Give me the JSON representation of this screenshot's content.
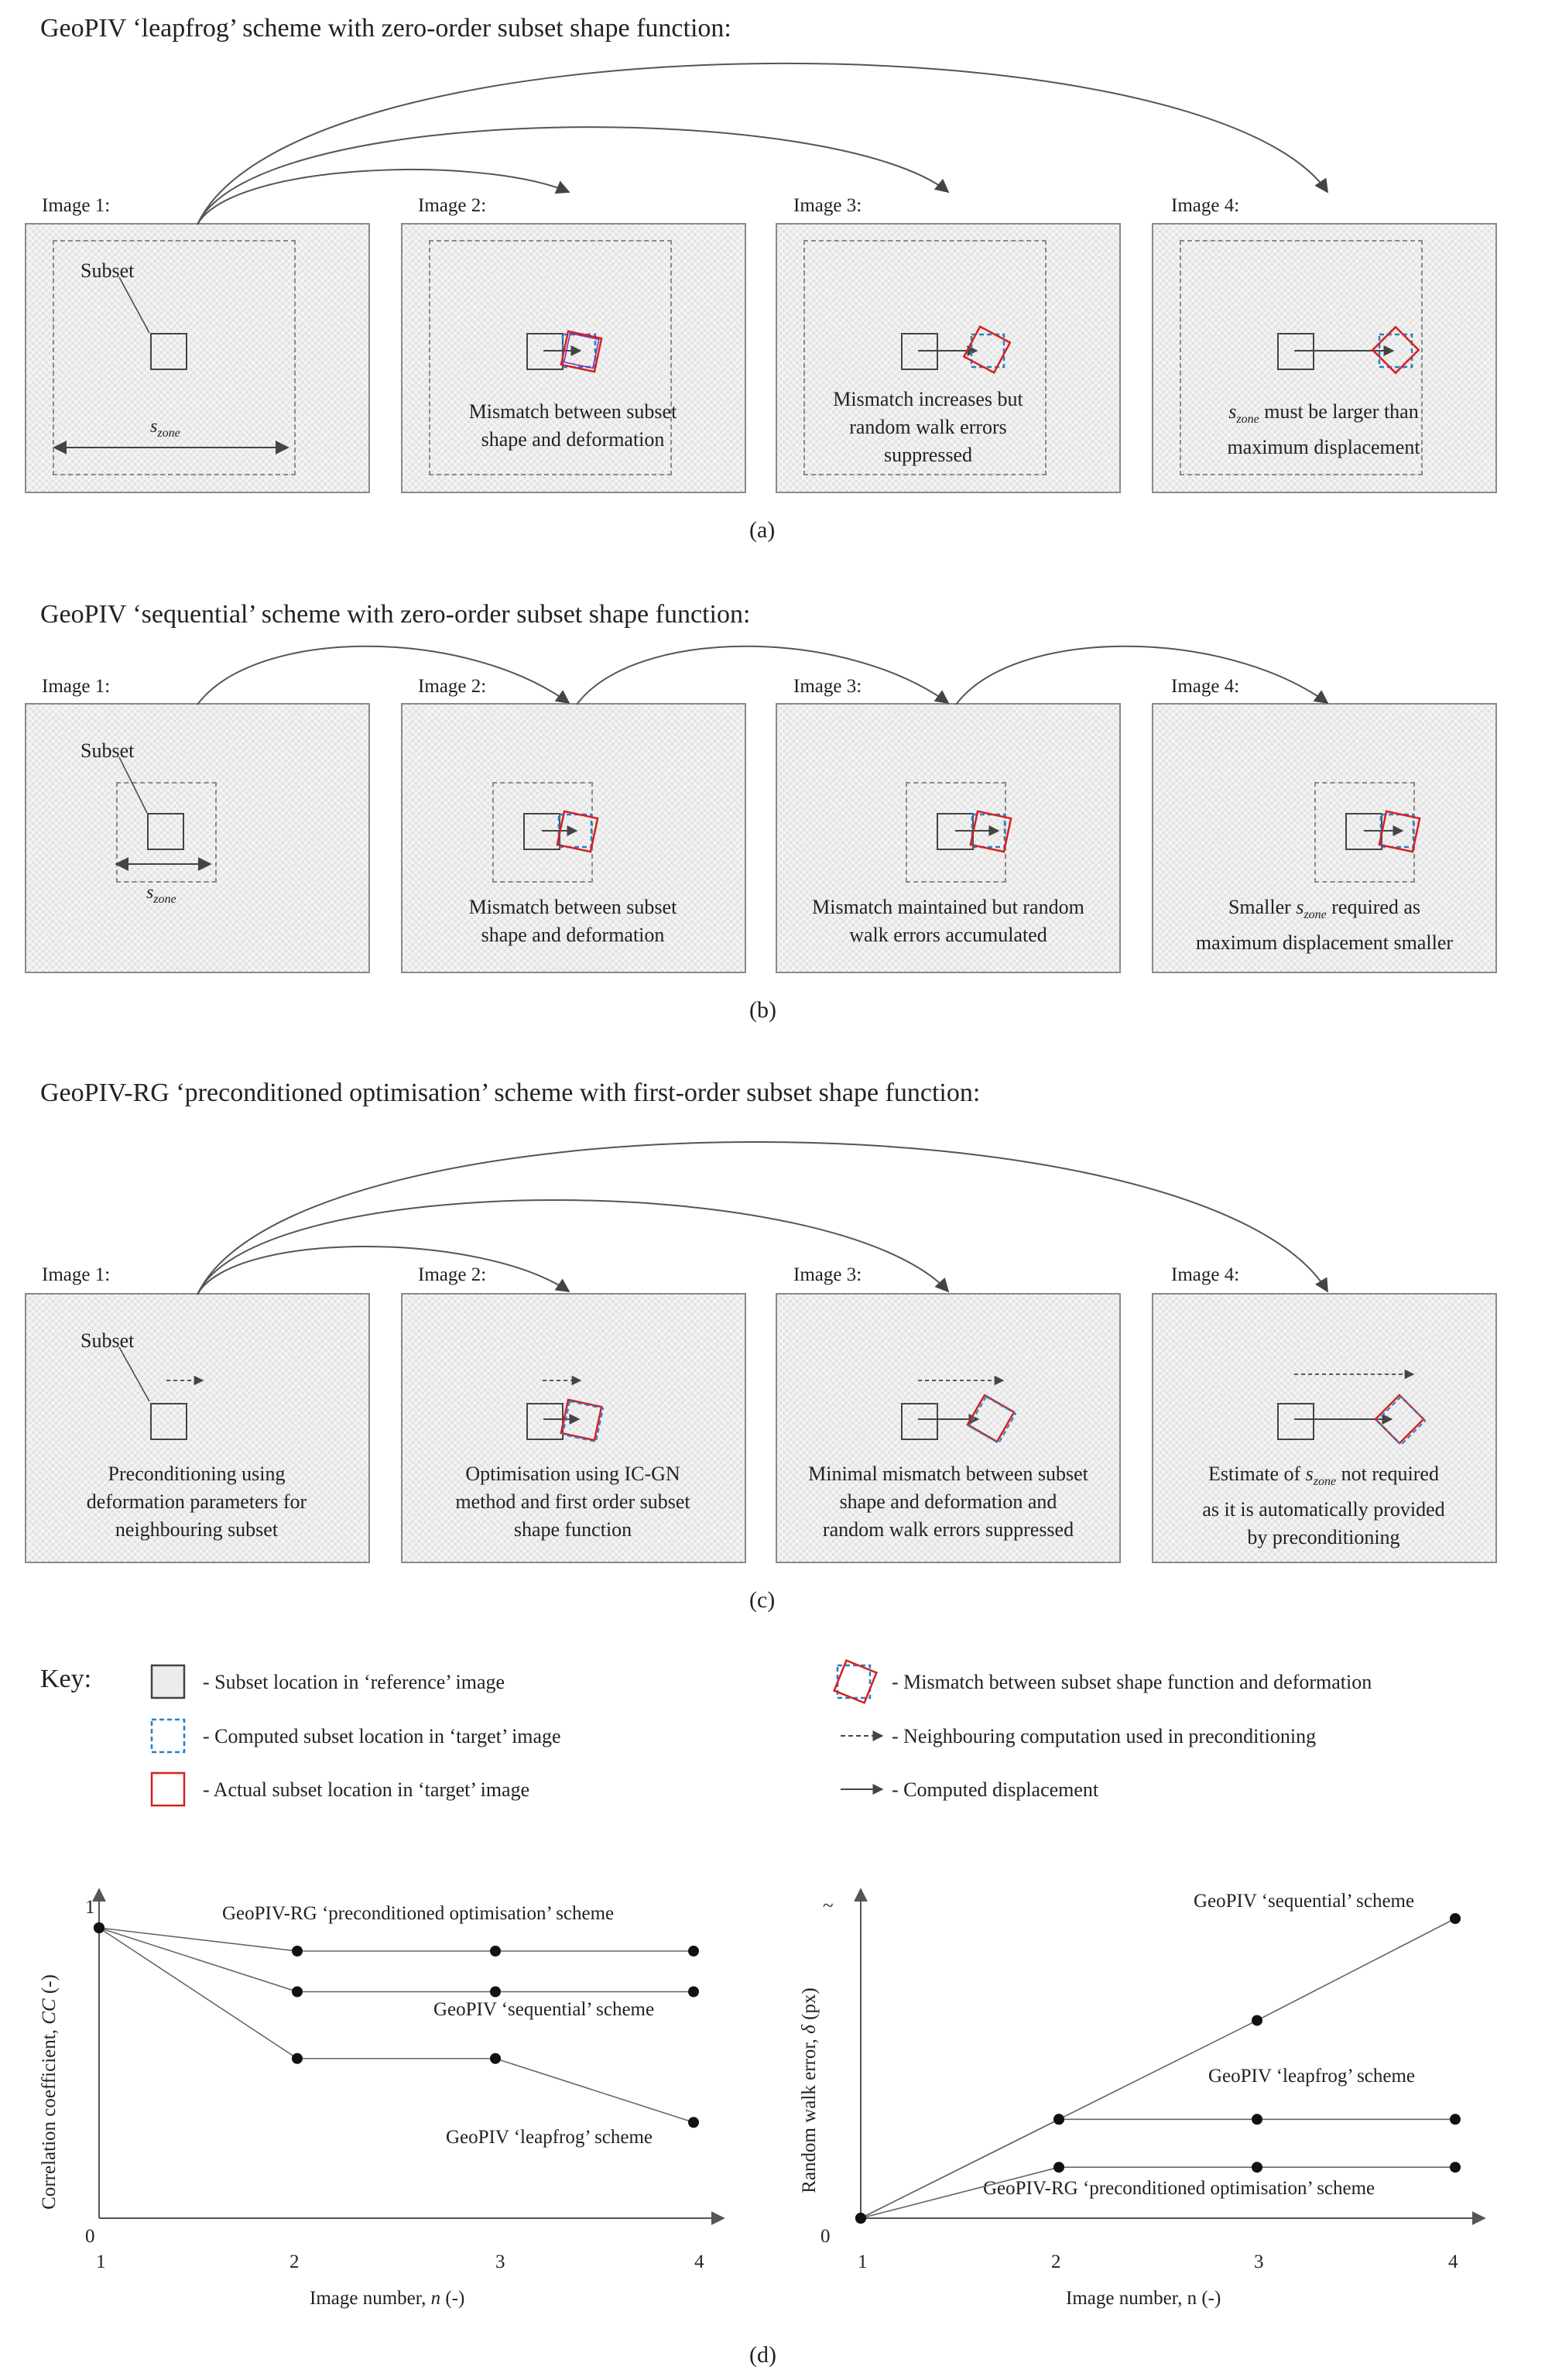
{
  "sections": {
    "a": {
      "heading": "GeoPIV ‘leapfrog’ scheme with zero-order subset shape function:",
      "image_labels": [
        "Image 1:",
        "Image 2:",
        "Image 3:",
        "Image 4:"
      ],
      "subset_label": "Subset",
      "szone_label": "s",
      "szone_sub": "zone",
      "captions": {
        "p2": [
          "Mismatch between subset",
          "shape and deformation"
        ],
        "p3": [
          "Mismatch increases but",
          "random walk errors",
          "suppressed"
        ],
        "p4_line1_suffix": " must be larger than",
        "p4_line2": "maximum displacement"
      },
      "panel_label": "(a)"
    },
    "b": {
      "heading": "GeoPIV ‘sequential’ scheme with zero-order subset shape function:",
      "image_labels": [
        "Image 1:",
        "Image 2:",
        "Image 3:",
        "Image 4:"
      ],
      "subset_label": "Subset",
      "captions": {
        "p2": [
          "Mismatch between subset",
          "shape and deformation"
        ],
        "p3": [
          "Mismatch maintained but random",
          "walk errors accumulated"
        ],
        "p4_line1_prefix": "Smaller ",
        "p4_line1_suffix": " required as",
        "p4_line2": "maximum displacement smaller"
      },
      "panel_label": "(b)"
    },
    "c": {
      "heading": "GeoPIV-RG ‘preconditioned optimisation’ scheme with first-order subset shape function:",
      "image_labels": [
        "Image 1:",
        "Image 2:",
        "Image 3:",
        "Image 4:"
      ],
      "subset_label": "Subset",
      "captions": {
        "p1": [
          "Preconditioning using",
          "deformation parameters for",
          "neighbouring subset"
        ],
        "p2": [
          "Optimisation using IC-GN",
          "method and first order subset",
          "shape function"
        ],
        "p3": [
          "Minimal mismatch between subset",
          "shape and deformation and",
          "random walk errors suppressed"
        ],
        "p4_line1_prefix": "Estimate of  ",
        "p4_line1_suffix": " not required",
        "p4_line2": "as it is automatically provided",
        "p4_line3": "by preconditioning"
      },
      "panel_label": "(c)"
    }
  },
  "key": {
    "title": "Key:",
    "items": [
      "- Subset location in ‘reference’ image",
      "- Computed subset location in ‘target’ image",
      "- Actual subset location in ‘target’ image",
      "- Mismatch between subset shape function and deformation",
      "- Neighbouring computation used in preconditioning",
      "- Computed displacement"
    ]
  },
  "panel_d_label": "(d)",
  "colors": {
    "actual": "#d62020",
    "computed": "#2a7fc1",
    "reference": "#444444",
    "panel_fill": "#e3e3e3"
  },
  "chart_data": [
    {
      "type": "line",
      "x": [
        1,
        2,
        3,
        4
      ],
      "xlabel_prefix": "Image number, ",
      "xlabel_var": "n",
      "xlabel_suffix": " (-)",
      "ylabel_prefix": "Correlation coefficient, ",
      "ylabel_var": "CC",
      "ylabel_suffix": " (-)",
      "xticks": [
        "1",
        "2",
        "3",
        "4"
      ],
      "yticks": [
        "0",
        "1"
      ],
      "ylim": [
        0,
        1
      ],
      "series": [
        {
          "name": "GeoPIV-RG  ‘preconditioned optimisation’ scheme",
          "values": [
            1,
            0.92,
            0.92,
            0.92
          ]
        },
        {
          "name": "GeoPIV ‘sequential’ scheme",
          "values": [
            1,
            0.78,
            0.78,
            0.78
          ]
        },
        {
          "name": "GeoPIV ‘leapfrog’ scheme",
          "values": [
            1,
            0.55,
            0.55,
            0.33
          ]
        }
      ]
    },
    {
      "type": "line",
      "x": [
        1,
        2,
        3,
        4
      ],
      "xlabel": "Image  number, n (-)",
      "ylabel_prefix": "Random walk error, ",
      "ylabel_var": "δ",
      "ylabel_suffix": " (px)",
      "xticks": [
        "1",
        "2",
        "3",
        "4"
      ],
      "yticks": [
        "0"
      ],
      "y_axis_break": "~",
      "series": [
        {
          "name": "GeoPIV ‘sequential’ scheme",
          "values": [
            0,
            0.33,
            0.66,
            1.0
          ]
        },
        {
          "name": "GeoPIV ‘leapfrog’ scheme",
          "values": [
            0,
            0.33,
            0.33,
            0.33
          ]
        },
        {
          "name": "GeoPIV-RG  ‘preconditioned optimisation’ scheme",
          "values": [
            0,
            0.17,
            0.17,
            0.17
          ]
        }
      ]
    }
  ]
}
